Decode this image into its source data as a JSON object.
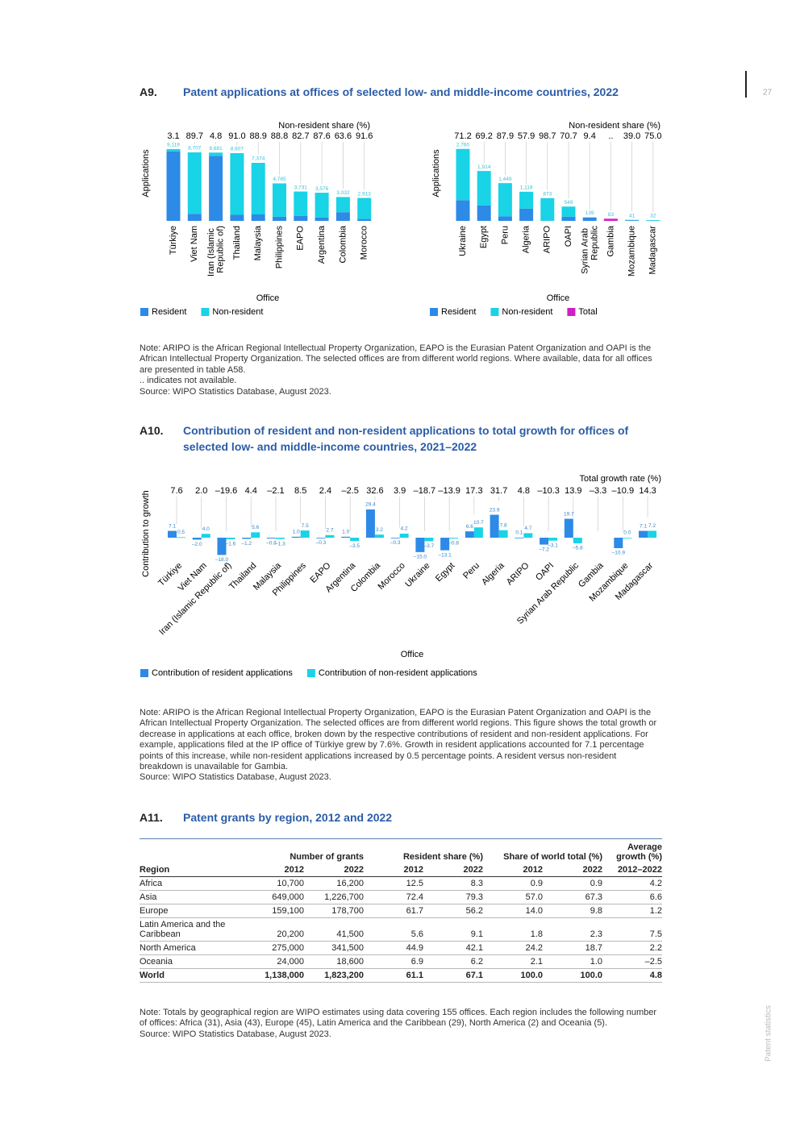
{
  "page": {
    "number": "27",
    "running_head": "Patent statistics"
  },
  "sections": [
    {
      "label": "A9.",
      "title": "Patent applications at offices of selected low- and middle-income countries, 2022",
      "notes": [
        "Note: ARIPO is the African Regional Intellectual Property Organization, EAPO is the Eurasian Patent Organization and OAPI is the African Intellectual Property Organization. The selected offices are from different world regions. Where available, data for all offices are presented in table A58.",
        ".. indicates not available.",
        "Source: WIPO Statistics Database, August 2023."
      ]
    },
    {
      "label": "A10.",
      "title": "Contribution of resident and non-resident applications to total growth for offices of selected low- and middle-income countries, 2021–2022",
      "notes": [
        "Note: ARIPO is the African Regional Intellectual Property Organization, EAPO is the Eurasian Patent Organization and OAPI is the African Intellectual Property Organization. The selected offices are from different world regions. This figure shows the total growth or decrease in applications at each office, broken down by the respective contributions of resident and non-resident applications. For example, applications filed at the IP office of Türkiye grew by 7.6%. Growth in resident applications accounted for 7.1 percentage points of this increase, while non-resident applications increased by 0.5 percentage points. A resident versus non-resident breakdown is unavailable for Gambia.",
        "Source: WIPO Statistics Database, August 2023."
      ]
    },
    {
      "label": "A11.",
      "title": "Patent grants by region, 2012 and 2022",
      "notes": [
        "Note: Totals by geographical region are WIPO estimates using data covering 155 offices. Each region includes the following number of offices: Africa (31), Asia (43), Europe (45), Latin America and the Caribbean (29), North America (2) and Oceania (5).",
        "Source: WIPO Statistics Database, August 2023."
      ]
    }
  ],
  "chart_data": [
    {
      "type": "bar",
      "stacked": true,
      "y_label": "Applications",
      "x_label": "Office",
      "top_row": {
        "label": "Non-resident share (%)",
        "labels": [
          "3.1",
          "89.7",
          "4.8",
          "91.0",
          "88.9",
          "88.8",
          "82.7",
          "87.6",
          "63.6",
          "91.6"
        ]
      },
      "categories": [
        "Türkiye",
        "Viet Nam",
        "Iran (Islamic Republic of)",
        "Thailand",
        "Malaysia",
        "Philippines",
        "EAPO",
        "Argentina",
        "Colombia",
        "Morocco"
      ],
      "series": [
        {
          "name": "Resident",
          "color": "#2d8ae6",
          "values": [
            8836,
            897,
            8264,
            775,
            819,
            534,
            645,
            443,
            1104,
            245
          ]
        },
        {
          "name": "Non-resident",
          "color": "#19d3e6",
          "values": [
            283,
            7810,
            417,
            7832,
            6555,
            4231,
            3086,
            3133,
            1928,
            2668
          ]
        }
      ],
      "totals": {
        "values": [
          9119,
          8707,
          8681,
          8607,
          7374,
          4765,
          3731,
          3576,
          3032,
          2913
        ],
        "value_labels": [
          "9,119",
          "8,707",
          "8,681",
          "8,607",
          "7,374",
          "4,765",
          "3,731",
          "3,576",
          "3,032",
          "2,913"
        ]
      },
      "ylim": [
        0,
        10000
      ]
    },
    {
      "type": "bar",
      "stacked": true,
      "y_label": "Applications",
      "x_label": "Office",
      "top_row": {
        "label": "Non-resident share (%)",
        "labels": [
          "71.2",
          "69.2",
          "87.9",
          "57.9",
          "98.7",
          "70.7",
          "9.4",
          "..",
          "39.0",
          "75.0"
        ]
      },
      "categories": [
        "Ukraine",
        "Egypt",
        "Peru",
        "Algeria",
        "ARIPO",
        "OAPI",
        "Syrian Arab Republic",
        "Gambia",
        "Mozambique",
        "Madagascar"
      ],
      "series": [
        {
          "name": "Resident",
          "color": "#2d8ae6",
          "values": [
            795,
            590,
            175,
            471,
            11,
            161,
            126,
            null,
            25,
            8
          ]
        },
        {
          "name": "Non-resident",
          "color": "#19d3e6",
          "values": [
            1965,
            1324,
            1274,
            647,
            862,
            388,
            13,
            null,
            16,
            24
          ]
        },
        {
          "name": "Total",
          "color": "#d21fc3",
          "values": [
            null,
            null,
            null,
            null,
            null,
            null,
            null,
            83,
            null,
            null
          ]
        }
      ],
      "totals": {
        "values": [
          2760,
          1914,
          1449,
          1118,
          873,
          549,
          139,
          83,
          41,
          32
        ],
        "value_labels": [
          "2,760",
          "1,914",
          "1,449",
          "1,118",
          "873",
          "549",
          "139",
          "83",
          "41",
          "32"
        ]
      },
      "ylim": [
        0,
        3000
      ]
    },
    {
      "type": "bar",
      "grouped": true,
      "y_label": "Contribution to growth",
      "x_label": "Office",
      "top_row": {
        "label": "Total growth rate (%)"
      },
      "categories": [
        "Türkiye",
        "Viet Nam",
        "Iran (Islamic Republic of)",
        "Thailand",
        "Malaysia",
        "Philippines",
        "EAPO",
        "Argentina",
        "Colombia",
        "Morocco",
        "Ukraine",
        "Egypt",
        "Peru",
        "Algeria",
        "ARIPO",
        "OAPI",
        "Syrian Arab Republic",
        "Gambia",
        "Mozambique",
        "Madagascar"
      ],
      "series": [
        {
          "name": "Contribution of resident applications",
          "color": "#2d8ae6",
          "values": [
            7.1,
            -2.0,
            -18.0,
            -1.2,
            -0.8,
            1.0,
            -0.3,
            1.0,
            29.4,
            -0.3,
            -15.0,
            -13.1,
            6.6,
            23.9,
            0.1,
            -7.2,
            19.7,
            null,
            -10.9,
            7.1
          ],
          "value_labels": [
            "7.1",
            "–2.0",
            "–18.0",
            "–1.2",
            "–0.8",
            "1.0",
            "–0.3",
            "1.0",
            "29.4",
            "–0.3",
            "–15.0",
            "–13.1",
            "6.6",
            "23.9",
            "0.1",
            "–7.2",
            "19.7",
            null,
            "–10.9",
            "7.1"
          ]
        },
        {
          "name": "Contribution of non-resident applications",
          "color": "#19d3e6",
          "values": [
            0.5,
            4.0,
            -1.6,
            5.6,
            -1.3,
            7.5,
            2.7,
            -3.5,
            3.2,
            4.2,
            -3.7,
            -0.8,
            10.7,
            7.8,
            4.7,
            -3.1,
            -5.8,
            null,
            0.0,
            7.2
          ],
          "value_labels": [
            "0.5",
            "4.0",
            "–1.6",
            "5.6",
            "–1.3",
            "7.5",
            "2.7",
            "–3.5",
            "3.2",
            "4.2",
            "–3.7",
            "–0.8",
            "10.7",
            "7.8",
            "4.7",
            "–3.1",
            "–5.8",
            null,
            "0.0",
            "7.2"
          ]
        }
      ],
      "totals": {
        "values": [
          7.6,
          2.0,
          -19.6,
          4.4,
          -2.1,
          8.5,
          2.4,
          -2.5,
          32.6,
          3.9,
          -18.7,
          -13.9,
          17.3,
          31.7,
          4.8,
          -10.3,
          13.9,
          -3.3,
          -10.9,
          14.3
        ],
        "value_labels": [
          "7.6",
          "2.0",
          "–19.6",
          "4.4",
          "–2.1",
          "8.5",
          "2.4",
          "–2.5",
          "32.6",
          "3.9",
          "–18.7",
          "–13.9",
          "17.3",
          "31.7",
          "4.8",
          "–10.3",
          "13.9",
          "–3.3",
          "–10.9",
          "14.3"
        ]
      },
      "ylim": [
        -22,
        32
      ]
    }
  ],
  "table": {
    "group_headers": [
      "Number of grants",
      "Resident share (%)",
      "Share of world total (%)",
      "Average growth (%)"
    ],
    "columns": [
      "Region",
      "2012",
      "2022",
      "2012",
      "2022",
      "2012",
      "2022",
      "2012–2022"
    ],
    "rows": [
      [
        "Africa",
        "10,700",
        "16,200",
        "12.5",
        "8.3",
        "0.9",
        "0.9",
        "4.2"
      ],
      [
        "Asia",
        "649,000",
        "1,226,700",
        "72.4",
        "79.3",
        "57.0",
        "67.3",
        "6.6"
      ],
      [
        "Europe",
        "159,100",
        "178,700",
        "61.7",
        "56.2",
        "14.0",
        "9.8",
        "1.2"
      ],
      [
        "Latin America and the Caribbean",
        "20,200",
        "41,500",
        "5.6",
        "9.1",
        "1.8",
        "2.3",
        "7.5"
      ],
      [
        "North America",
        "275,000",
        "341,500",
        "44.9",
        "42.1",
        "24.2",
        "18.7",
        "2.2"
      ],
      [
        "Oceania",
        "24,000",
        "18,600",
        "6.9",
        "6.2",
        "2.1",
        "1.0",
        "–2.5"
      ],
      [
        "World",
        "1,138,000",
        "1,823,200",
        "61.1",
        "67.1",
        "100.0",
        "100.0",
        "4.8"
      ]
    ]
  }
}
